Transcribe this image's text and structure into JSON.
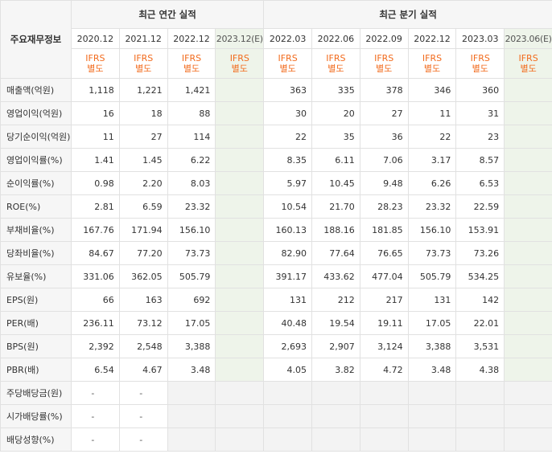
{
  "header": {
    "corner_label": "주요재무정보",
    "annual_group": "최근 연간 실적",
    "quarter_group": "최근 분기 실적"
  },
  "periods": [
    {
      "label": "2020.12",
      "standard_line1": "IFRS",
      "standard_line2": "별도",
      "estimate": false
    },
    {
      "label": "2021.12",
      "standard_line1": "IFRS",
      "standard_line2": "별도",
      "estimate": false
    },
    {
      "label": "2022.12",
      "standard_line1": "IFRS",
      "standard_line2": "별도",
      "estimate": false
    },
    {
      "label": "2023.12(E)",
      "standard_line1": "IFRS",
      "standard_line2": "별도",
      "estimate": true
    },
    {
      "label": "2022.03",
      "standard_line1": "IFRS",
      "standard_line2": "별도",
      "estimate": false
    },
    {
      "label": "2022.06",
      "standard_line1": "IFRS",
      "standard_line2": "별도",
      "estimate": false
    },
    {
      "label": "2022.09",
      "standard_line1": "IFRS",
      "standard_line2": "별도",
      "estimate": false
    },
    {
      "label": "2022.12",
      "standard_line1": "IFRS",
      "standard_line2": "별도",
      "estimate": false
    },
    {
      "label": "2023.03",
      "standard_line1": "IFRS",
      "standard_line2": "별도",
      "estimate": false
    },
    {
      "label": "2023.06(E)",
      "standard_line1": "IFRS",
      "standard_line2": "별도",
      "estimate": true
    }
  ],
  "rows": [
    {
      "label": "매출액(억원)",
      "values": [
        "1,118",
        "1,221",
        "1,421",
        "",
        "363",
        "335",
        "378",
        "346",
        "360",
        ""
      ]
    },
    {
      "label": "영업이익(억원)",
      "values": [
        "16",
        "18",
        "88",
        "",
        "30",
        "20",
        "27",
        "11",
        "31",
        ""
      ]
    },
    {
      "label": "당기순이익(억원)",
      "values": [
        "11",
        "27",
        "114",
        "",
        "22",
        "35",
        "36",
        "22",
        "23",
        ""
      ]
    },
    {
      "label": "영업이익률(%)",
      "values": [
        "1.41",
        "1.45",
        "6.22",
        "",
        "8.35",
        "6.11",
        "7.06",
        "3.17",
        "8.57",
        ""
      ]
    },
    {
      "label": "순이익률(%)",
      "values": [
        "0.98",
        "2.20",
        "8.03",
        "",
        "5.97",
        "10.45",
        "9.48",
        "6.26",
        "6.53",
        ""
      ]
    },
    {
      "label": "ROE(%)",
      "values": [
        "2.81",
        "6.59",
        "23.32",
        "",
        "10.54",
        "21.70",
        "28.23",
        "23.32",
        "22.59",
        ""
      ]
    },
    {
      "label": "부채비율(%)",
      "values": [
        "167.76",
        "171.94",
        "156.10",
        "",
        "160.13",
        "188.16",
        "181.85",
        "156.10",
        "153.91",
        ""
      ]
    },
    {
      "label": "당좌비율(%)",
      "values": [
        "84.67",
        "77.20",
        "73.73",
        "",
        "82.90",
        "77.64",
        "76.65",
        "73.73",
        "73.26",
        ""
      ]
    },
    {
      "label": "유보율(%)",
      "values": [
        "331.06",
        "362.05",
        "505.79",
        "",
        "391.17",
        "433.62",
        "477.04",
        "505.79",
        "534.25",
        ""
      ]
    },
    {
      "label": "EPS(원)",
      "values": [
        "66",
        "163",
        "692",
        "",
        "131",
        "212",
        "217",
        "131",
        "142",
        ""
      ]
    },
    {
      "label": "PER(배)",
      "values": [
        "236.11",
        "73.12",
        "17.05",
        "",
        "40.48",
        "19.54",
        "19.11",
        "17.05",
        "22.01",
        ""
      ]
    },
    {
      "label": "BPS(원)",
      "values": [
        "2,392",
        "2,548",
        "3,388",
        "",
        "2,693",
        "2,907",
        "3,124",
        "3,388",
        "3,531",
        ""
      ]
    },
    {
      "label": "PBR(배)",
      "values": [
        "6.54",
        "4.67",
        "3.48",
        "",
        "4.05",
        "3.82",
        "4.72",
        "3.48",
        "4.38",
        ""
      ]
    },
    {
      "label": "주당배당금(원)",
      "values": [
        "-",
        "-",
        "",
        "",
        "",
        "",
        "",
        "",
        "",
        ""
      ]
    },
    {
      "label": "시가배당률(%)",
      "values": [
        "-",
        "-",
        "",
        "",
        "",
        "",
        "",
        "",
        "",
        ""
      ]
    },
    {
      "label": "배당성향(%)",
      "values": [
        "-",
        "-",
        "",
        "",
        "",
        "",
        "",
        "",
        "",
        ""
      ]
    }
  ]
}
